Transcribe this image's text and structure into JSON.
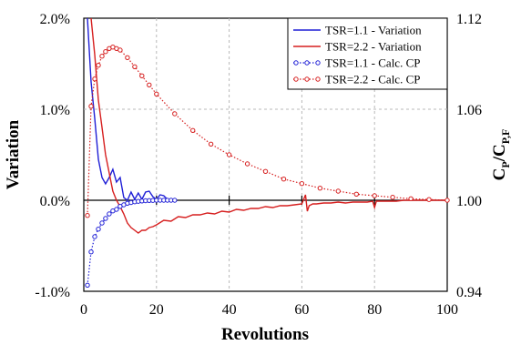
{
  "chart_data": {
    "type": "line",
    "xlabel": "Revolutions",
    "ylabel_left": "Variation",
    "ylabel_right_base": "C",
    "ylabel_right_sub1": "P",
    "ylabel_right_sep": "/C",
    "ylabel_right_sub2": "P,F",
    "xlim": [
      0,
      100
    ],
    "ylim_left": [
      -0.01,
      0.02
    ],
    "ylim_right": [
      0.94,
      1.12
    ],
    "x_ticks": [
      "0",
      "20",
      "40",
      "60",
      "80",
      "100"
    ],
    "y_ticks_left": [
      "-1.0%",
      "0.0%",
      "1.0%",
      "2.0%"
    ],
    "y_ticks_right": [
      "0.94",
      "1.00",
      "1.06",
      "1.12"
    ],
    "grid": true,
    "legend_position": "top-right",
    "colors": {
      "blue": "#1f1fd6",
      "red": "#d61f1f"
    },
    "series": [
      {
        "name": "TSR=1.1 - Variation",
        "axis": "left",
        "style": "solid",
        "color": "#1f1fd6",
        "x": [
          1,
          2,
          3,
          4,
          5,
          6,
          7,
          8,
          9,
          10,
          11,
          12,
          13,
          14,
          15,
          16,
          17,
          18,
          19,
          20,
          21,
          22,
          23,
          24,
          25
        ],
        "y": [
          0.02,
          0.013,
          0.009,
          0.0045,
          0.0025,
          0.0018,
          0.0025,
          0.0034,
          0.002,
          0.0025,
          0.0003,
          0.0,
          0.0009,
          0.0001,
          0.0008,
          0.0001,
          0.0009,
          0.001,
          0.0004,
          0.0001,
          0.0006,
          0.0005,
          0.0001,
          0.0,
          0.0
        ]
      },
      {
        "name": "TSR=2.2 - Variation",
        "axis": "left",
        "style": "solid",
        "color": "#d61f1f",
        "x": [
          2,
          3,
          4,
          5,
          6,
          7,
          8,
          9,
          10,
          11,
          12,
          13,
          14,
          15,
          16,
          17,
          18,
          19,
          20,
          22,
          24,
          26,
          28,
          30,
          32,
          34,
          36,
          38,
          40,
          42,
          44,
          46,
          48,
          50,
          52,
          54,
          56,
          58,
          60,
          61,
          61.5,
          62,
          63,
          64,
          66,
          68,
          70,
          72,
          74,
          76,
          78,
          79.5,
          80,
          80.5,
          82,
          84,
          86,
          88,
          90,
          92,
          94,
          96,
          98,
          100
        ],
        "y": [
          0.02,
          0.016,
          0.011,
          0.008,
          0.005,
          0.003,
          0.001,
          0.0,
          -0.0007,
          -0.0015,
          -0.0025,
          -0.003,
          -0.0033,
          -0.0036,
          -0.0033,
          -0.0033,
          -0.003,
          -0.0029,
          -0.0027,
          -0.0022,
          -0.0023,
          -0.0018,
          -0.0019,
          -0.0016,
          -0.0016,
          -0.0014,
          -0.0015,
          -0.0012,
          -0.0013,
          -0.001,
          -0.0011,
          -0.0009,
          -0.0009,
          -0.0007,
          -0.0008,
          -0.0006,
          -0.0006,
          -0.0005,
          -0.0004,
          0.0006,
          -0.0012,
          -0.0006,
          -0.0004,
          -0.0004,
          -0.0003,
          -0.0003,
          -0.0002,
          -0.0003,
          -0.0002,
          -0.0002,
          -0.0002,
          -0.0001,
          -0.0008,
          -0.0001,
          -0.0001,
          -0.0001,
          -0.0001,
          0.0,
          0.0,
          0.0,
          0.0,
          0.0,
          0.0,
          0.0
        ]
      },
      {
        "name": "TSR=1.1 - Calc. CP",
        "axis": "right",
        "style": "dotted-markers",
        "color": "#1f1fd6",
        "x": [
          1,
          2,
          3,
          4,
          5,
          6,
          7,
          8,
          9,
          10,
          11,
          12,
          13,
          14,
          15,
          16,
          17,
          18,
          19,
          20,
          21,
          22,
          23,
          24,
          25
        ],
        "y": [
          0.944,
          0.966,
          0.976,
          0.981,
          0.985,
          0.988,
          0.991,
          0.993,
          0.994,
          0.996,
          0.997,
          0.998,
          0.9985,
          0.999,
          0.9993,
          0.9995,
          0.9997,
          0.9998,
          0.9999,
          1.0,
          1.0,
          1.0,
          1.0,
          1.0,
          1.0
        ]
      },
      {
        "name": "TSR=2.2 - Calc. CP",
        "axis": "right",
        "style": "dotted-markers",
        "color": "#d61f1f",
        "x": [
          1,
          2,
          3,
          4,
          5,
          6,
          7,
          8,
          9,
          10,
          12,
          14,
          16,
          18,
          20,
          25,
          30,
          35,
          40,
          45,
          50,
          55,
          60,
          65,
          70,
          75,
          80,
          85,
          90,
          95,
          100
        ],
        "y": [
          0.99,
          1.062,
          1.08,
          1.089,
          1.095,
          1.098,
          1.1,
          1.101,
          1.1,
          1.099,
          1.094,
          1.088,
          1.082,
          1.076,
          1.07,
          1.057,
          1.046,
          1.037,
          1.03,
          1.024,
          1.019,
          1.014,
          1.011,
          1.008,
          1.006,
          1.004,
          1.003,
          1.002,
          1.001,
          1.0005,
          1.0
        ]
      }
    ]
  }
}
